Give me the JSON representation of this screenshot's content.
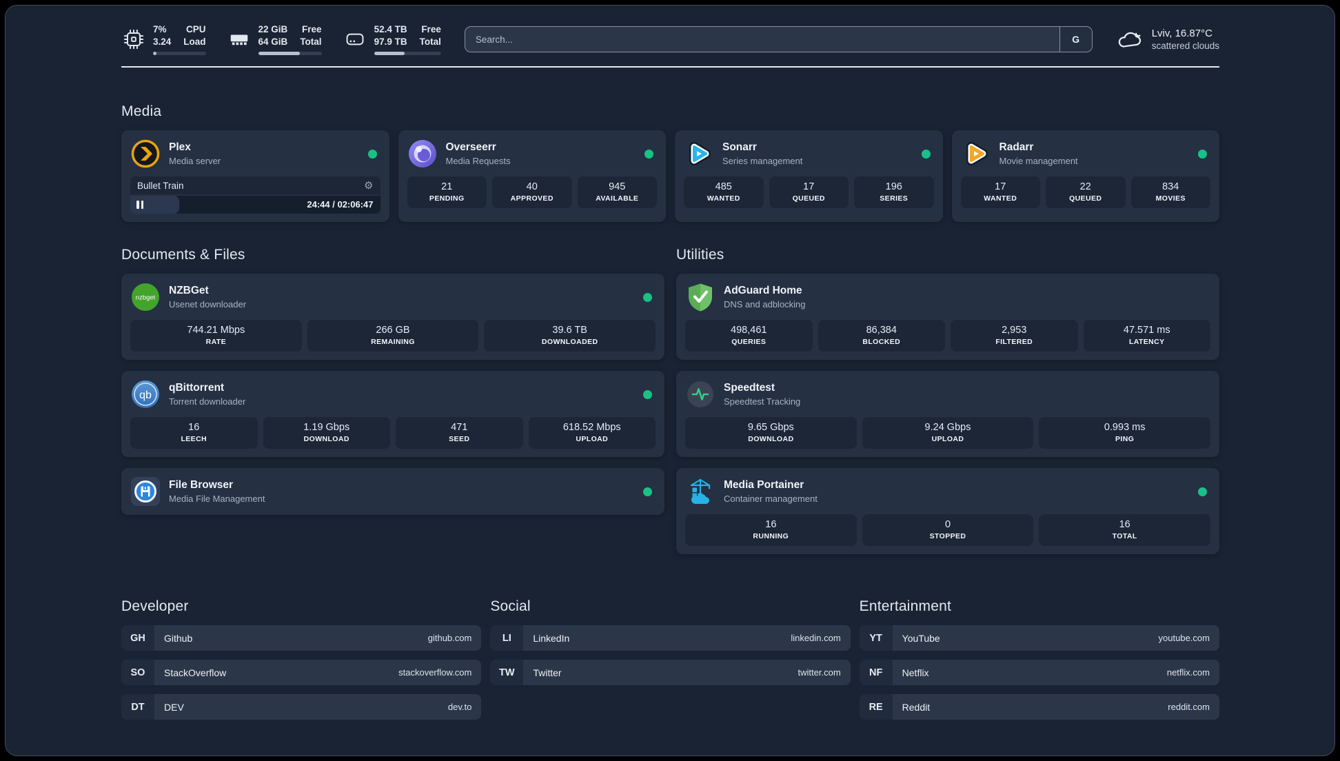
{
  "header": {
    "cpu": {
      "values": [
        "7%",
        "3.24"
      ],
      "labels": [
        "CPU",
        "Load"
      ],
      "progress": 7,
      "icon": "cpu-chip"
    },
    "ram": {
      "values": [
        "22 GiB",
        "64 GiB"
      ],
      "labels": [
        "Free",
        "Total"
      ],
      "progress": 66,
      "icon": "memory-stick"
    },
    "disk": {
      "values": [
        "52.4 TB",
        "97.9 TB"
      ],
      "labels": [
        "Free",
        "Total"
      ],
      "progress": 46,
      "icon": "hard-drive"
    },
    "search": {
      "placeholder": "Search...",
      "engine": "G"
    },
    "weather": {
      "location": "Lviv, 16.87°C",
      "condition": "scattered clouds",
      "icon": "cloud"
    }
  },
  "media": {
    "title": "Media",
    "plex": {
      "name": "Plex",
      "desc": "Media server",
      "icon": "plex",
      "online": true,
      "now_playing": "Bullet Train",
      "time": "24:44 / 02:06:47",
      "progress": 19.5
    },
    "overseerr": {
      "name": "Overseerr",
      "desc": "Media Requests",
      "icon": "overseerr",
      "online": true,
      "stats": [
        {
          "value": "21",
          "label": "PENDING"
        },
        {
          "value": "40",
          "label": "APPROVED"
        },
        {
          "value": "945",
          "label": "AVAILABLE"
        }
      ]
    },
    "sonarr": {
      "name": "Sonarr",
      "desc": "Series management",
      "icon": "sonarr",
      "online": true,
      "stats": [
        {
          "value": "485",
          "label": "WANTED"
        },
        {
          "value": "17",
          "label": "QUEUED"
        },
        {
          "value": "196",
          "label": "SERIES"
        }
      ]
    },
    "radarr": {
      "name": "Radarr",
      "desc": "Movie management",
      "icon": "radarr",
      "online": true,
      "stats": [
        {
          "value": "17",
          "label": "WANTED"
        },
        {
          "value": "22",
          "label": "QUEUED"
        },
        {
          "value": "834",
          "label": "MOVIES"
        }
      ]
    }
  },
  "documents": {
    "title": "Documents & Files",
    "nzbget": {
      "name": "NZBGet",
      "desc": "Usenet downloader",
      "icon": "nzbget",
      "online": true,
      "stats": [
        {
          "value": "744.21 Mbps",
          "label": "RATE"
        },
        {
          "value": "266 GB",
          "label": "REMAINING"
        },
        {
          "value": "39.6 TB",
          "label": "DOWNLOADED"
        }
      ]
    },
    "qbittorrent": {
      "name": "qBittorrent",
      "desc": "Torrent downloader",
      "icon": "qbittorrent",
      "online": true,
      "stats": [
        {
          "value": "16",
          "label": "LEECH"
        },
        {
          "value": "1.19 Gbps",
          "label": "DOWNLOAD"
        },
        {
          "value": "471",
          "label": "SEED"
        },
        {
          "value": "618.52 Mbps",
          "label": "UPLOAD"
        }
      ]
    },
    "filebrowser": {
      "name": "File Browser",
      "desc": "Media File Management",
      "icon": "filebrowser",
      "online": true
    }
  },
  "utilities": {
    "title": "Utilities",
    "adguard": {
      "name": "AdGuard Home",
      "desc": "DNS and adblocking",
      "icon": "adguard",
      "stats": [
        {
          "value": "498,461",
          "label": "QUERIES"
        },
        {
          "value": "86,384",
          "label": "BLOCKED"
        },
        {
          "value": "2,953",
          "label": "FILTERED"
        },
        {
          "value": "47.571 ms",
          "label": "LATENCY"
        }
      ]
    },
    "speedtest": {
      "name": "Speedtest",
      "desc": "Speedtest Tracking",
      "icon": "speedtest",
      "stats": [
        {
          "value": "9.65 Gbps",
          "label": "DOWNLOAD"
        },
        {
          "value": "9.24 Gbps",
          "label": "UPLOAD"
        },
        {
          "value": "0.993 ms",
          "label": "PING"
        }
      ]
    },
    "portainer": {
      "name": "Media Portainer",
      "desc": "Container management",
      "icon": "portainer",
      "online": true,
      "stats": [
        {
          "value": "16",
          "label": "RUNNING"
        },
        {
          "value": "0",
          "label": "STOPPED"
        },
        {
          "value": "16",
          "label": "TOTAL"
        }
      ]
    }
  },
  "bookmarks": {
    "developer": {
      "title": "Developer",
      "links": [
        {
          "abbr": "GH",
          "name": "Github",
          "url": "github.com"
        },
        {
          "abbr": "SO",
          "name": "StackOverflow",
          "url": "stackoverflow.com"
        },
        {
          "abbr": "DT",
          "name": "DEV",
          "url": "dev.to"
        }
      ]
    },
    "social": {
      "title": "Social",
      "links": [
        {
          "abbr": "LI",
          "name": "LinkedIn",
          "url": "linkedin.com"
        },
        {
          "abbr": "TW",
          "name": "Twitter",
          "url": "twitter.com"
        }
      ]
    },
    "entertainment": {
      "title": "Entertainment",
      "links": [
        {
          "abbr": "YT",
          "name": "YouTube",
          "url": "youtube.com"
        },
        {
          "abbr": "NF",
          "name": "Netflix",
          "url": "netflix.com"
        },
        {
          "abbr": "RE",
          "name": "Reddit",
          "url": "reddit.com"
        }
      ]
    }
  },
  "colors": {
    "status_online": "#19c185",
    "accent_plex": "#e7a511",
    "accent_sonarr": "#27b5ea",
    "accent_radarr": "#f5a623",
    "accent_portainer": "#29b2e6"
  }
}
